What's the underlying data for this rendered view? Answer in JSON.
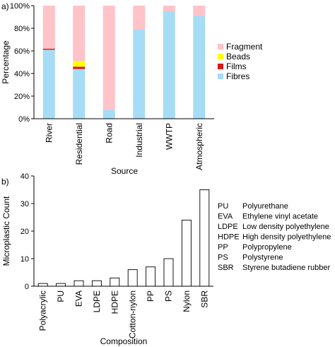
{
  "colors": {
    "fragment": "#ffc3c8",
    "beads": "#ffff00",
    "films": "#d7191c",
    "fibres": "#a6dcf5",
    "bar_fill": "#ffffff",
    "axis": "#000000"
  },
  "panel_a": {
    "label": "a)"
  },
  "panel_b": {
    "label": "b)"
  },
  "chart_data": [
    {
      "type": "bar",
      "stacked": true,
      "categories": [
        "River",
        "Residential",
        "Road",
        "Industrial",
        "WWTP",
        "Atmospheric"
      ],
      "series": [
        {
          "name": "Fibres",
          "color_key": "fibres",
          "values": [
            61,
            44,
            8,
            79,
            95,
            91
          ]
        },
        {
          "name": "Films",
          "color_key": "films",
          "values": [
            1,
            2,
            0,
            0,
            0,
            0
          ]
        },
        {
          "name": "Beads",
          "color_key": "beads",
          "values": [
            0,
            5,
            0,
            0,
            0,
            0
          ]
        },
        {
          "name": "Fragment",
          "color_key": "fragment",
          "values": [
            38,
            49,
            92,
            21,
            5,
            9
          ]
        }
      ],
      "legend_order": [
        "Fragment",
        "Beads",
        "Films",
        "Fibres"
      ],
      "legend_position": "right",
      "title": "",
      "xlabel": "Source",
      "ylabel": "Percentage",
      "ylim": [
        0,
        100
      ],
      "yticks": [
        "0%",
        "20%",
        "40%",
        "60%",
        "80%",
        "100%"
      ],
      "grid": false
    },
    {
      "type": "bar",
      "categories": [
        "Polyacrylic",
        "PU",
        "EVA",
        "LDPE",
        "HDPE",
        "Cotton-nylon",
        "PP",
        "PS",
        "Nylon",
        "SBR"
      ],
      "values": [
        1,
        1,
        2,
        2,
        3,
        6,
        7,
        10,
        24,
        35
      ],
      "title": "",
      "xlabel": "Composition",
      "ylabel": "Microplastic Count",
      "ylim": [
        0,
        40
      ],
      "yticks": [
        "0",
        "10",
        "20",
        "30",
        "40"
      ],
      "grid": false,
      "abbreviations": [
        {
          "abbr": "PU",
          "full": "Polyurethane"
        },
        {
          "abbr": "EVA",
          "full": "Ethylene vinyl acetate"
        },
        {
          "abbr": "LDPE",
          "full": "Low density polyethylene"
        },
        {
          "abbr": "HDPE",
          "full": "High density polyethylene"
        },
        {
          "abbr": "PP",
          "full": "Polypropylene"
        },
        {
          "abbr": "PS",
          "full": "Polystyrene"
        },
        {
          "abbr": "SBR",
          "full": "Styrene butadiene rubber"
        }
      ]
    }
  ]
}
